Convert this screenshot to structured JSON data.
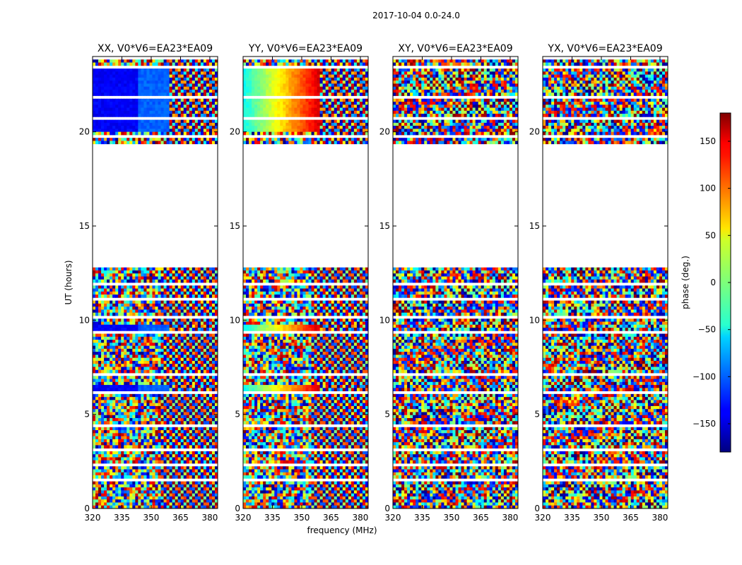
{
  "figure": {
    "suptitle": "2017-10-04 0.0-24.0"
  },
  "chart_data": {
    "type": "heatmap",
    "title": "2017-10-04 0.0-24.0",
    "xlabel": "frequency (MHz)",
    "ylabel": "UT (hours)",
    "xlim": [
      320,
      384
    ],
    "ylim": [
      0,
      24
    ],
    "x_ticks": [
      320,
      335,
      350,
      365,
      380
    ],
    "y_ticks": [
      0,
      5,
      10,
      15,
      20
    ],
    "panels": [
      {
        "title": "XX, V0*V6=EA23*EA09",
        "pol": "XX"
      },
      {
        "title": "YY, V0*V6=EA23*EA09",
        "pol": "YY"
      },
      {
        "title": "XY, V0*V6=EA23*EA09",
        "pol": "XY"
      },
      {
        "title": "YX, V0*V6=EA23*EA09",
        "pol": "YX"
      }
    ],
    "colorbar": {
      "label": "phase (deg.)",
      "range": [
        -180,
        180
      ],
      "ticks": [
        -150,
        -100,
        -50,
        0,
        50,
        100,
        150
      ],
      "tick_labels": [
        "−150",
        "−100",
        "−50",
        "0",
        "50",
        "100",
        "150"
      ],
      "colormap": "jet"
    },
    "data_gap_ut": [
      12.8,
      19.4
    ],
    "blank_ut_rows": [
      1.5,
      2.35,
      3.2,
      4.35,
      5.6,
      6.1,
      7.05,
      9.3,
      10.1,
      11.1,
      11.95,
      19.8,
      20.7,
      21.85,
      23.5
    ]
  }
}
